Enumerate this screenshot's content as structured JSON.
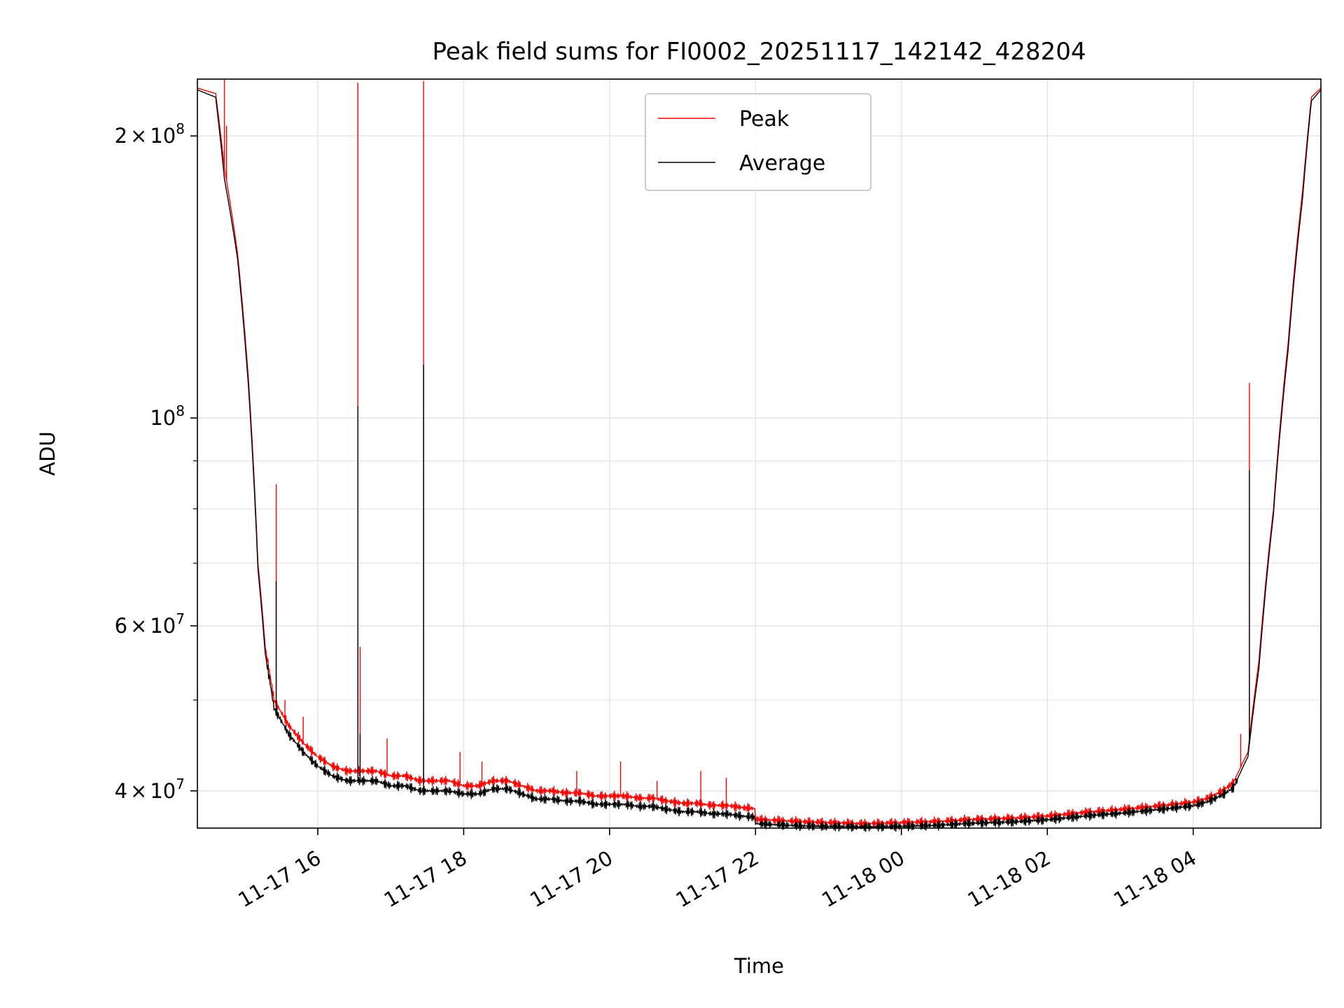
{
  "chart_data": {
    "type": "line",
    "title": "Peak field sums for FI0002_20251117_142142_428204",
    "xlabel": "Time",
    "ylabel": "ADU",
    "yscale": "log",
    "xlim": [
      14.35,
      29.75
    ],
    "ylim": [
      36500000,
      230000000
    ],
    "grid": true,
    "legend_position": "top-center",
    "x_ticks": [
      {
        "value": 16,
        "label": "11-17 16"
      },
      {
        "value": 18,
        "label": "11-17 18"
      },
      {
        "value": 20,
        "label": "11-17 20"
      },
      {
        "value": 22,
        "label": "11-17 22"
      },
      {
        "value": 24,
        "label": "11-18 00"
      },
      {
        "value": 26,
        "label": "11-18 02"
      },
      {
        "value": 28,
        "label": "11-18 04"
      }
    ],
    "y_major_ticks": [
      {
        "value": 40000000,
        "mantissa": "4",
        "exponent": "7"
      },
      {
        "value": 60000000,
        "mantissa": "6",
        "exponent": "7"
      },
      {
        "value": 100000000,
        "mantissa": "",
        "exponent": "8"
      },
      {
        "value": 200000000,
        "mantissa": "2",
        "exponent": "8"
      }
    ],
    "y_minor_ticks": [
      50000000,
      70000000,
      80000000,
      90000000
    ],
    "series": [
      {
        "name": "Peak",
        "color": "#ff0000",
        "x": [
          14.35,
          14.6,
          14.72,
          14.9,
          15.05,
          15.18,
          15.28,
          15.4,
          15.6,
          15.8,
          16.0,
          16.2,
          16.4,
          16.6,
          16.8,
          17.0,
          17.2,
          17.4,
          17.6,
          17.8,
          18.0,
          18.2,
          18.4,
          18.6,
          18.8,
          19.0,
          19.2,
          19.4,
          19.6,
          19.8,
          20.0,
          20.2,
          20.4,
          20.6,
          20.8,
          21.0,
          21.2,
          21.4,
          21.6,
          21.8,
          21.99,
          22.0,
          22.3,
          22.6,
          23.0,
          23.5,
          24.0,
          24.5,
          25.0,
          25.5,
          26.0,
          26.3,
          26.6,
          27.0,
          27.3,
          27.6,
          28.0,
          28.2,
          28.4,
          28.55,
          28.75,
          28.9,
          29.1,
          29.3,
          29.5,
          29.62,
          29.75
        ],
        "y": [
          225000000,
          222000000,
          185000000,
          150000000,
          110000000,
          70000000,
          57000000,
          50000000,
          47000000,
          45000000,
          43500000,
          42500000,
          42000000,
          42000000,
          42000000,
          41500000,
          41500000,
          41000000,
          41000000,
          41000000,
          40500000,
          40500000,
          41000000,
          41000000,
          40500000,
          40000000,
          40000000,
          39800000,
          39800000,
          39500000,
          39500000,
          39500000,
          39300000,
          39300000,
          39000000,
          38800000,
          38800000,
          38600000,
          38600000,
          38400000,
          38300000,
          37300000,
          37200000,
          37100000,
          37000000,
          36900000,
          37000000,
          37100000,
          37300000,
          37400000,
          37600000,
          37800000,
          38000000,
          38200000,
          38400000,
          38600000,
          38900000,
          39300000,
          40000000,
          40800000,
          44000000,
          55000000,
          80000000,
          120000000,
          175000000,
          220000000,
          225000000
        ],
        "spikes": [
          [
            14.72,
            230000000
          ],
          [
            14.75,
            205000000
          ],
          [
            15.43,
            85000000
          ],
          [
            15.55,
            50000000
          ],
          [
            15.8,
            48000000
          ],
          [
            16.55,
            228000000
          ],
          [
            16.58,
            57000000
          ],
          [
            16.95,
            45500000
          ],
          [
            17.45,
            229000000
          ],
          [
            17.95,
            44000000
          ],
          [
            18.25,
            43000000
          ],
          [
            19.55,
            42000000
          ],
          [
            20.15,
            43000000
          ],
          [
            20.65,
            41000000
          ],
          [
            21.25,
            42000000
          ],
          [
            21.6,
            41300000
          ],
          [
            28.65,
            46000000
          ],
          [
            28.77,
            109000000
          ]
        ]
      },
      {
        "name": "Average",
        "color": "#000000",
        "x": [
          14.35,
          14.6,
          14.72,
          14.9,
          15.05,
          15.18,
          15.28,
          15.4,
          15.6,
          15.8,
          16.0,
          16.2,
          16.4,
          16.6,
          16.8,
          17.0,
          17.2,
          17.4,
          17.6,
          17.8,
          18.0,
          18.2,
          18.4,
          18.6,
          18.8,
          19.0,
          19.2,
          19.4,
          19.6,
          19.8,
          20.0,
          20.2,
          20.4,
          20.6,
          20.8,
          21.0,
          21.2,
          21.4,
          21.6,
          21.8,
          21.99,
          22.0,
          22.3,
          22.6,
          23.0,
          23.5,
          24.0,
          24.5,
          25.0,
          25.5,
          26.0,
          26.3,
          26.6,
          27.0,
          27.3,
          27.6,
          28.0,
          28.2,
          28.4,
          28.55,
          28.75,
          28.9,
          29.1,
          29.3,
          29.5,
          29.62,
          29.75
        ],
        "y": [
          224000000,
          220000000,
          180000000,
          148000000,
          108000000,
          69000000,
          56000000,
          49000000,
          46000000,
          44000000,
          42500000,
          41500000,
          41000000,
          41000000,
          41000000,
          40500000,
          40500000,
          40000000,
          40000000,
          40000000,
          39700000,
          39700000,
          40200000,
          40200000,
          39700000,
          39200000,
          39200000,
          39000000,
          39000000,
          38700000,
          38700000,
          38700000,
          38500000,
          38500000,
          38200000,
          38000000,
          38000000,
          37800000,
          37800000,
          37600000,
          37500000,
          36900000,
          36800000,
          36700000,
          36650000,
          36600000,
          36650000,
          36750000,
          36950000,
          37050000,
          37250000,
          37450000,
          37650000,
          37850000,
          38050000,
          38250000,
          38550000,
          38950000,
          39600000,
          40300000,
          43500000,
          54000000,
          79000000,
          118000000,
          172000000,
          218000000,
          224000000
        ],
        "spikes": [
          [
            15.43,
            67000000
          ],
          [
            16.55,
            103000000
          ],
          [
            16.58,
            46000000
          ],
          [
            17.45,
            114000000
          ],
          [
            28.77,
            88000000
          ]
        ]
      }
    ]
  }
}
